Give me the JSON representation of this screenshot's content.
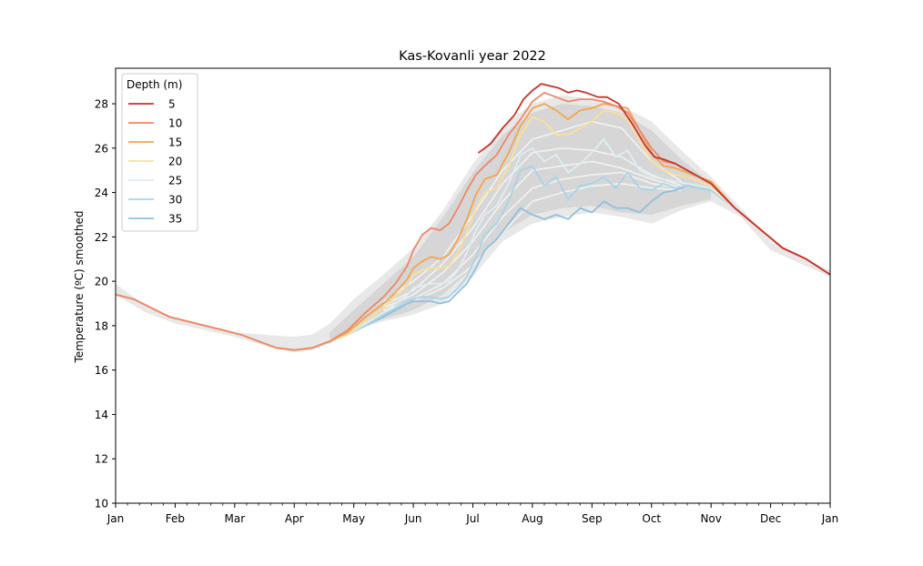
{
  "chart_data": {
    "type": "line",
    "title": "Kas-Kovanli year 2022",
    "xlabel": "",
    "ylabel": "Temperature (ºC) smoothed",
    "xlim": [
      0,
      12
    ],
    "ylim": [
      10,
      29.6
    ],
    "yticks": [
      10,
      12,
      14,
      16,
      18,
      20,
      22,
      24,
      26,
      28
    ],
    "xticks": [
      "Jan",
      "Feb",
      "Mar",
      "Apr",
      "May",
      "Jun",
      "Jul",
      "Aug",
      "Sep",
      "Oct",
      "Nov",
      "Dec",
      "Jan"
    ],
    "legend": {
      "title": "Depth (m)",
      "placement": "top-left"
    },
    "climatology_envelope": {
      "x": [
        0,
        0.5,
        1,
        1.5,
        2,
        2.5,
        3,
        3.3,
        3.6,
        4,
        4.5,
        5,
        5.5,
        6,
        6.5,
        7,
        7.5,
        8,
        8.5,
        9,
        9.5,
        10,
        10.5,
        11,
        11.5,
        12
      ],
      "upper": [
        19.9,
        18.9,
        18.3,
        18.0,
        17.7,
        17.6,
        17.5,
        17.6,
        18.1,
        19.2,
        20.3,
        21.5,
        23.2,
        25.3,
        27.0,
        28.0,
        28.4,
        28.2,
        27.9,
        27.2,
        25.9,
        24.7,
        23.3,
        21.8,
        21.1,
        20.5
      ],
      "lower": [
        19.4,
        18.6,
        18.1,
        17.8,
        17.5,
        17.1,
        16.8,
        16.9,
        17.2,
        17.8,
        18.2,
        18.5,
        19.0,
        20.2,
        21.8,
        22.6,
        22.9,
        23.1,
        22.9,
        22.6,
        23.2,
        23.6,
        22.9,
        21.4,
        20.8,
        20.2
      ]
    },
    "climatology_inner": {
      "x": [
        3.6,
        4,
        4.5,
        5,
        5.5,
        6,
        6.5,
        7,
        7.5,
        8,
        8.5,
        9,
        9.5,
        10
      ],
      "upper": [
        17.7,
        18.7,
        19.9,
        21.1,
        22.9,
        24.9,
        26.6,
        27.6,
        28.0,
        27.9,
        27.6,
        26.8,
        25.5,
        24.4
      ],
      "lower": [
        17.2,
        17.9,
        18.3,
        18.7,
        19.4,
        20.6,
        22.2,
        23.0,
        23.3,
        23.4,
        23.1,
        23.0,
        23.4,
        23.7
      ]
    },
    "climatology_years": [
      {
        "x": [
          4.5,
          5,
          5.5,
          6,
          6.5,
          7,
          7.5,
          8,
          8.5,
          9,
          9.5
        ],
        "y": [
          19.1,
          20.0,
          21.1,
          23.0,
          25.0,
          26.4,
          26.8,
          27.2,
          26.9,
          25.4,
          24.5
        ]
      },
      {
        "x": [
          4.5,
          5,
          5.5,
          6,
          6.5,
          7,
          7.5,
          8,
          8.5,
          9,
          9.5
        ],
        "y": [
          18.9,
          19.6,
          20.8,
          22.4,
          24.4,
          25.8,
          26.0,
          25.9,
          25.6,
          24.8,
          24.3
        ]
      },
      {
        "x": [
          4.5,
          5,
          5.5,
          6,
          6.5,
          7,
          7.5,
          8,
          8.5,
          9,
          9.5
        ],
        "y": [
          18.8,
          19.4,
          20.4,
          21.8,
          23.6,
          25.0,
          25.2,
          25.4,
          25.1,
          24.6,
          24.2
        ]
      },
      {
        "x": [
          4.5,
          5,
          5.5,
          6,
          6.5,
          7,
          7.5,
          8,
          8.5,
          9,
          9.5
        ],
        "y": [
          18.6,
          19.2,
          19.9,
          21.2,
          22.9,
          24.2,
          24.6,
          24.8,
          24.9,
          24.4,
          24.2
        ]
      },
      {
        "x": [
          4.5,
          5,
          5.5,
          6,
          6.5,
          7,
          7.5,
          8,
          8.5,
          9,
          9.5
        ],
        "y": [
          18.7,
          19.1,
          19.7,
          20.7,
          22.2,
          23.6,
          24.0,
          24.3,
          24.4,
          24.2,
          24.1
        ]
      }
    ],
    "series": [
      {
        "name": "5",
        "color": "#c8322a",
        "x": [
          6.1,
          6.3,
          6.5,
          6.7,
          6.85,
          7.0,
          7.15,
          7.3,
          7.45,
          7.6,
          7.75,
          7.9,
          8.1,
          8.25,
          8.45,
          8.7,
          8.9,
          9.05,
          9.2,
          9.4,
          9.6,
          9.8,
          10.0
        ],
        "y": [
          25.8,
          26.2,
          26.9,
          27.5,
          28.2,
          28.6,
          28.9,
          28.8,
          28.7,
          28.5,
          28.6,
          28.5,
          28.3,
          28.3,
          28.0,
          27.0,
          26.1,
          25.6,
          25.5,
          25.3,
          25.0,
          24.7,
          24.4
        ]
      },
      {
        "name": "10",
        "color": "#ee8768",
        "x": [
          0,
          0.3,
          0.6,
          0.9,
          1.2,
          1.5,
          1.8,
          2.1,
          2.4,
          2.7,
          3.0,
          3.3,
          3.6,
          3.9,
          4.2,
          4.5,
          4.7,
          4.9,
          5.0,
          5.15,
          5.3,
          5.45,
          5.6,
          5.75,
          5.9,
          6.05,
          6.2,
          6.4,
          6.6,
          6.8,
          7.0,
          7.2,
          7.4,
          7.6,
          7.8,
          8.0,
          8.2,
          8.4,
          8.6,
          8.8,
          9.0,
          9.2,
          9.4,
          9.6,
          9.8,
          10.0
        ],
        "y": [
          19.4,
          19.2,
          18.8,
          18.4,
          18.2,
          18.0,
          17.8,
          17.6,
          17.3,
          17.0,
          16.9,
          17.0,
          17.3,
          17.8,
          18.6,
          19.3,
          19.9,
          20.7,
          21.4,
          22.1,
          22.4,
          22.3,
          22.6,
          23.3,
          24.1,
          24.8,
          25.2,
          25.7,
          26.6,
          27.3,
          28.1,
          28.5,
          28.3,
          28.1,
          28.2,
          28.2,
          28.1,
          27.9,
          27.6,
          26.8,
          26.0,
          25.4,
          25.3,
          25.0,
          24.7,
          24.4
        ]
      },
      {
        "name": "15",
        "color": "#f7a34c",
        "x": [
          0,
          0.3,
          0.6,
          0.9,
          1.2,
          1.5,
          1.8,
          2.1,
          2.4,
          2.7,
          3.0,
          3.3,
          3.6,
          3.9,
          4.2,
          4.5,
          4.7,
          4.9,
          5.0,
          5.15,
          5.3,
          5.45,
          5.6,
          5.75,
          5.9,
          6.05,
          6.2,
          6.4,
          6.6,
          6.8,
          7.0,
          7.2,
          7.4,
          7.6,
          7.8,
          8.0,
          8.2,
          8.4,
          8.6,
          8.8,
          9.0,
          9.2,
          9.4,
          9.6,
          9.8,
          10.0
        ],
        "y": [
          19.4,
          19.2,
          18.8,
          18.4,
          18.2,
          18.0,
          17.8,
          17.6,
          17.3,
          17.0,
          16.9,
          17.0,
          17.3,
          17.7,
          18.4,
          19.0,
          19.5,
          20.1,
          20.6,
          20.9,
          21.1,
          21.0,
          21.2,
          21.9,
          22.8,
          23.9,
          24.6,
          24.8,
          25.8,
          27.0,
          27.8,
          28.0,
          27.7,
          27.3,
          27.7,
          27.8,
          28.0,
          27.9,
          27.8,
          26.8,
          25.8,
          25.2,
          25.1,
          24.9,
          24.7,
          24.5
        ]
      },
      {
        "name": "20",
        "color": "#fae094",
        "x": [
          0,
          0.3,
          0.6,
          0.9,
          1.2,
          1.5,
          1.8,
          2.1,
          2.4,
          2.7,
          3.0,
          3.3,
          3.6,
          3.9,
          4.2,
          4.5,
          4.7,
          4.9,
          5.0,
          5.15,
          5.3,
          5.45,
          5.6,
          5.75,
          5.9,
          6.05,
          6.2,
          6.4,
          6.6,
          6.8,
          7.0,
          7.2,
          7.4,
          7.6,
          7.8,
          8.0,
          8.2,
          8.4,
          8.6,
          8.8,
          9.0,
          9.2,
          9.4,
          9.6,
          9.8,
          10.0
        ],
        "y": [
          19.4,
          19.2,
          18.8,
          18.4,
          18.2,
          18.0,
          17.8,
          17.6,
          17.3,
          17.0,
          16.9,
          17.0,
          17.3,
          17.6,
          18.2,
          18.8,
          19.3,
          19.8,
          20.3,
          20.5,
          20.6,
          20.6,
          20.7,
          21.3,
          22.2,
          23.3,
          24.0,
          24.2,
          25.2,
          26.6,
          27.4,
          27.2,
          26.6,
          26.6,
          26.9,
          27.2,
          27.7,
          27.6,
          27.3,
          26.3,
          25.4,
          25.0,
          24.8,
          24.7,
          24.5,
          24.3
        ]
      },
      {
        "name": "25",
        "color": "#deeef4",
        "x": [
          0,
          0.3,
          0.6,
          0.9,
          1.2,
          1.5,
          1.8,
          2.1,
          2.4,
          2.7,
          3.0,
          3.3,
          3.6,
          3.9,
          4.2,
          4.5,
          4.7,
          4.9,
          5.0,
          5.15,
          5.3,
          5.45,
          5.6,
          5.75,
          5.9,
          6.05,
          6.2,
          6.4,
          6.6,
          6.8,
          7.0,
          7.2,
          7.4,
          7.6,
          7.8,
          8.0,
          8.2,
          8.4,
          8.6,
          8.8,
          9.0,
          9.2,
          9.4,
          9.6,
          9.8,
          10.0
        ],
        "y": [
          19.4,
          19.2,
          18.8,
          18.4,
          18.2,
          18.0,
          17.8,
          17.6,
          17.3,
          17.0,
          16.9,
          17.0,
          17.3,
          17.6,
          18.1,
          18.6,
          19.0,
          19.4,
          19.7,
          19.8,
          19.9,
          19.9,
          20.0,
          20.5,
          21.3,
          22.3,
          23.0,
          23.4,
          24.4,
          25.7,
          26.0,
          25.4,
          25.7,
          24.9,
          25.3,
          25.8,
          26.4,
          25.6,
          25.9,
          25.0,
          24.7,
          24.6,
          24.5,
          24.4,
          24.3,
          24.2
        ]
      },
      {
        "name": "30",
        "color": "#a6d4e6",
        "x": [
          0,
          0.3,
          0.6,
          0.9,
          1.2,
          1.5,
          1.8,
          2.1,
          2.4,
          2.7,
          3.0,
          3.3,
          3.6,
          3.9,
          4.2,
          4.5,
          4.7,
          4.9,
          5.0,
          5.15,
          5.3,
          5.45,
          5.6,
          5.75,
          5.9,
          6.05,
          6.2,
          6.4,
          6.6,
          6.8,
          7.0,
          7.2,
          7.4,
          7.6,
          7.8,
          8.0,
          8.2,
          8.4,
          8.6,
          8.8,
          9.0,
          9.2,
          9.4,
          9.6,
          9.8,
          10.0
        ],
        "y": [
          19.4,
          19.2,
          18.8,
          18.4,
          18.2,
          18.0,
          17.8,
          17.6,
          17.3,
          17.0,
          16.9,
          17.0,
          17.3,
          17.6,
          18.0,
          18.5,
          18.8,
          19.1,
          19.2,
          19.3,
          19.3,
          19.2,
          19.3,
          19.7,
          20.2,
          21.1,
          22.1,
          22.6,
          23.6,
          25.0,
          25.2,
          24.3,
          24.7,
          23.7,
          24.3,
          24.4,
          24.7,
          24.2,
          24.9,
          24.2,
          24.1,
          24.4,
          24.2,
          24.3,
          24.2,
          24.1
        ]
      },
      {
        "name": "35",
        "color": "#91bfdc",
        "x": [
          0,
          0.3,
          0.6,
          0.9,
          1.2,
          1.5,
          1.8,
          2.1,
          2.4,
          2.7,
          3.0,
          3.3,
          3.6,
          3.9,
          4.2,
          4.5,
          4.7,
          4.9,
          5.0,
          5.15,
          5.3,
          5.45,
          5.6,
          5.75,
          5.9,
          6.05,
          6.2,
          6.4,
          6.6,
          6.8,
          7.0,
          7.2,
          7.4,
          7.6,
          7.8,
          8.0,
          8.2,
          8.4,
          8.6,
          8.8,
          9.0,
          9.2,
          9.4,
          9.6,
          9.8,
          10.0
        ],
        "y": [
          19.4,
          19.2,
          18.8,
          18.4,
          18.2,
          18.0,
          17.8,
          17.6,
          17.3,
          17.0,
          16.9,
          17.0,
          17.3,
          17.6,
          18.0,
          18.4,
          18.7,
          19.0,
          19.1,
          19.1,
          19.1,
          19.0,
          19.1,
          19.5,
          19.9,
          20.6,
          21.4,
          21.9,
          22.6,
          23.3,
          23.0,
          22.8,
          23.0,
          22.8,
          23.3,
          23.1,
          23.6,
          23.3,
          23.3,
          23.1,
          23.6,
          24.0,
          24.1,
          24.3,
          24.2,
          24.1
        ]
      }
    ],
    "shared_tail": {
      "x": [
        10.0,
        10.4,
        10.8,
        11.2,
        11.6,
        12.0
      ],
      "y": [
        24.1,
        23.3,
        22.4,
        21.5,
        21.0,
        20.3
      ]
    }
  }
}
